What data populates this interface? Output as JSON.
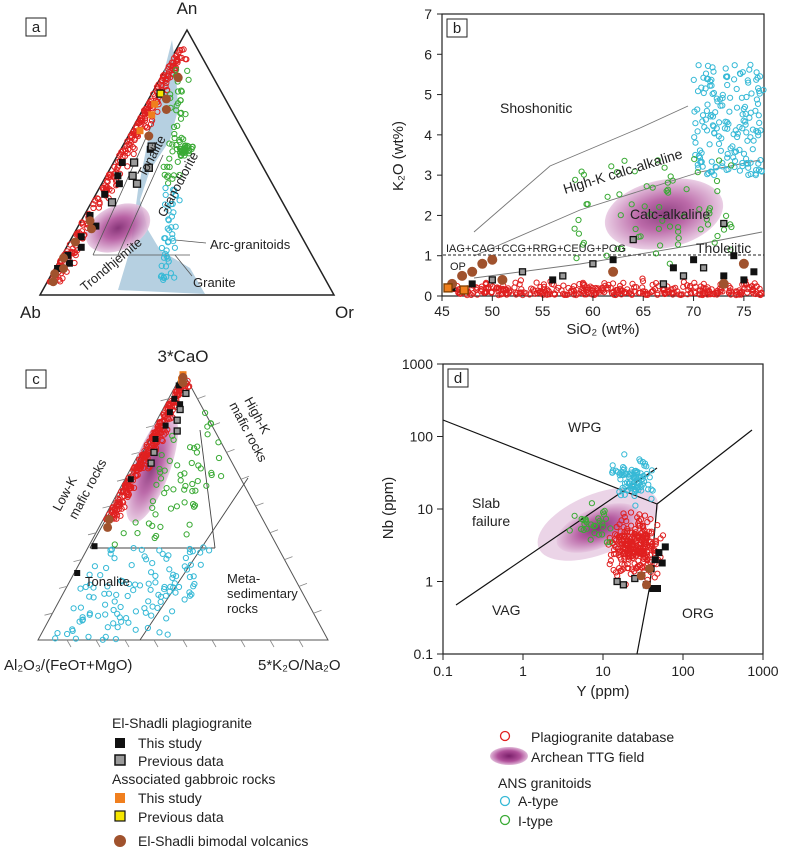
{
  "panels": {
    "a": {
      "letter": "a",
      "vertices": {
        "top": "An",
        "left": "Ab",
        "right": "Or"
      },
      "fields": [
        "Tonalite",
        "Granodiorite",
        "Trondhjemite",
        "Granite",
        "Arc-granitoids"
      ]
    },
    "b": {
      "letter": "b",
      "xlabel": "SiO₂ (wt%)",
      "ylabel": "K₂O (wt%)",
      "xticks": [
        "45",
        "50",
        "55",
        "60",
        "65",
        "70",
        "75"
      ],
      "yticks": [
        "0",
        "1",
        "2",
        "3",
        "4",
        "5",
        "6",
        "7"
      ],
      "fields": [
        "Shoshonitic",
        "High-K calc-alkaline",
        "Calc-alkaline",
        "Tholeiitic"
      ],
      "line_label": "IAG+CAG+CCG+RRG+CEUG+POG",
      "op_label": "OP"
    },
    "c": {
      "letter": "c",
      "vertices": {
        "top": "3*CaO",
        "left": "Al₂O₃/(FeOᴛ+MgO)",
        "right": "5*K₂O/Na₂O"
      },
      "fields": {
        "highk": [
          "High-K",
          "mafic rocks"
        ],
        "lowk": [
          "Low-K",
          "mafic rocks"
        ],
        "tonalite": "Tonalite",
        "meta": [
          "Meta-",
          "sedimentary",
          "rocks"
        ]
      }
    },
    "d": {
      "letter": "d",
      "xlabel": "Y (ppm)",
      "ylabel": "Nb (ppm)",
      "xticks": [
        "0.1",
        "1",
        "10",
        "100",
        "1000"
      ],
      "yticks": [
        "0.1",
        "1",
        "10",
        "100",
        "1000"
      ],
      "fields": [
        "WPG",
        "Slab",
        "failure",
        "VAG",
        "ORG"
      ]
    }
  },
  "legend": {
    "left": {
      "head1": "El-Shadli plagiogranite",
      "this_study": "This study",
      "previous": "Previous data",
      "head2": "Associated gabbroic rocks",
      "this_study2": "This study",
      "previous2": "Previous data",
      "volcanics": "El-Shadli bimodal volcanics"
    },
    "right": {
      "database": "Plagiogranite database",
      "ttg": "Archean TTG field",
      "head": "ANS granitoids",
      "atype": "A-type",
      "itype": "I-type"
    }
  },
  "colors": {
    "black_square": "#111111",
    "gray_square": "#9a9a9a",
    "orange_square": "#f07f1e",
    "yellow_square": "#f5e600",
    "volcanics": "#a0522d",
    "database": "#e02020",
    "ttg": "#b0509a",
    "atype": "#36b9d6",
    "itype": "#3aaa35",
    "arc_field": "#a9c8dc"
  },
  "chart_data": [
    {
      "type": "scatter",
      "panel": "a",
      "kind": "ternary An-Ab-Or",
      "series": [
        {
          "name": "Plagiogranite database",
          "points": "clustered along Ab–An edge, An 10–95%"
        },
        {
          "name": "Arc-granitoids",
          "points": "field from upper An to Granite region"
        }
      ]
    },
    {
      "type": "scatter",
      "panel": "b",
      "xlabel": "SiO₂ (wt%)",
      "ylabel": "K₂O (wt%)",
      "xlim": [
        45,
        77
      ],
      "ylim": [
        0,
        7
      ],
      "series": [
        {
          "name": "This study",
          "x": [
            46,
            48,
            56,
            62,
            68,
            70,
            73,
            74,
            75,
            76
          ],
          "y": [
            0.2,
            0.3,
            0.4,
            0.9,
            0.7,
            0.9,
            0.5,
            1.0,
            0.4,
            0.6
          ]
        },
        {
          "name": "Previous data",
          "x": [
            50,
            53,
            57,
            60,
            64,
            67,
            69,
            71,
            73
          ],
          "y": [
            0.4,
            0.6,
            0.5,
            0.8,
            1.4,
            0.3,
            0.5,
            0.7,
            1.8
          ]
        },
        {
          "name": "El-Shadli bimodal volcanics",
          "x": [
            46,
            47,
            48,
            49,
            50,
            51,
            62,
            73,
            75
          ],
          "y": [
            0.3,
            0.5,
            0.6,
            0.8,
            0.9,
            0.4,
            0.6,
            0.3,
            0.8
          ]
        }
      ]
    },
    {
      "type": "scatter",
      "panel": "c",
      "kind": "ternary 3*CaO – Al₂O₃/(FeOᴛ+MgO) – 5*K₂O/Na₂O"
    },
    {
      "type": "scatter",
      "panel": "d",
      "xlabel": "Y (ppm)",
      "ylabel": "Nb (ppm)",
      "scale": "log-log",
      "xlim": [
        0.1,
        1000
      ],
      "ylim": [
        0.1,
        1000
      ],
      "series": [
        {
          "name": "This study",
          "x": [
            40,
            45,
            50,
            55,
            60,
            42,
            48
          ],
          "y": [
            1.5,
            2.0,
            2.5,
            1.8,
            3.0,
            0.8,
            0.8
          ]
        },
        {
          "name": "Previous data",
          "x": [
            15,
            18,
            25,
            30,
            35
          ],
          "y": [
            1.0,
            0.9,
            1.1,
            1.2,
            0.9
          ]
        }
      ]
    }
  ]
}
